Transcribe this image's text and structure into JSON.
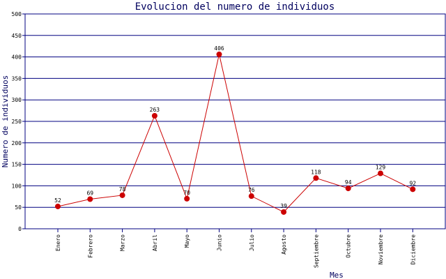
{
  "chart_data": {
    "type": "line",
    "title": "Evolucion del numero de individuos",
    "xlabel": "Mes",
    "ylabel": "Numero de individuos",
    "ylim": [
      0,
      500
    ],
    "yticks": [
      0,
      50,
      100,
      150,
      200,
      250,
      300,
      350,
      400,
      450,
      500
    ],
    "grid": true,
    "categories": [
      "Enero",
      "Febrero",
      "Marzo",
      "Abril",
      "Mayo",
      "Junio",
      "Julio",
      "Agosto",
      "Septiembre",
      "Octubre",
      "Noviembre",
      "Diciembre"
    ],
    "series": [
      {
        "values": [
          52,
          69,
          78,
          263,
          70,
          406,
          76,
          39,
          118,
          94,
          129,
          92
        ]
      }
    ],
    "colors": {
      "line": "#cc0000",
      "grid": "#000080",
      "text": "#00005e"
    }
  }
}
